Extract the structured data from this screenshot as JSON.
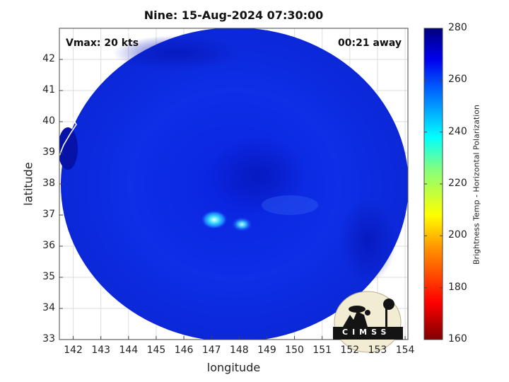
{
  "chart_data": {
    "type": "heatmap",
    "title": "Nine: 15-Aug-2024 07:30:00",
    "xlabel": "longitude",
    "ylabel": "latitude",
    "xlim": [
      141.5,
      154.1
    ],
    "ylim": [
      33,
      43
    ],
    "xticks": [
      142,
      143,
      144,
      145,
      146,
      147,
      148,
      149,
      150,
      151,
      152,
      153,
      154
    ],
    "yticks": [
      33,
      34,
      35,
      36,
      37,
      38,
      39,
      40,
      41,
      42
    ],
    "grid": true,
    "annotations": {
      "vmax": "Vmax: 20 kts",
      "away": "00:21 away"
    },
    "colorbar": {
      "label": "Brightness Temp - Horizontal Polarization",
      "range": [
        160,
        280
      ],
      "ticks": [
        160,
        180,
        200,
        220,
        240,
        260,
        280
      ],
      "colormap": [
        "#800000",
        "#ff0000",
        "#ff8000",
        "#ffff00",
        "#80ff80",
        "#00ffff",
        "#0080ff",
        "#0000ff",
        "#000080"
      ]
    },
    "field": {
      "center": [
        147.5,
        38
      ],
      "background_tb": 268,
      "hot_spots": [
        {
          "lon": 147.1,
          "lat": 36.85,
          "tb": 242
        },
        {
          "lon": 148.1,
          "lat": 36.7,
          "tb": 250
        }
      ]
    },
    "logo": "CIMSS"
  }
}
